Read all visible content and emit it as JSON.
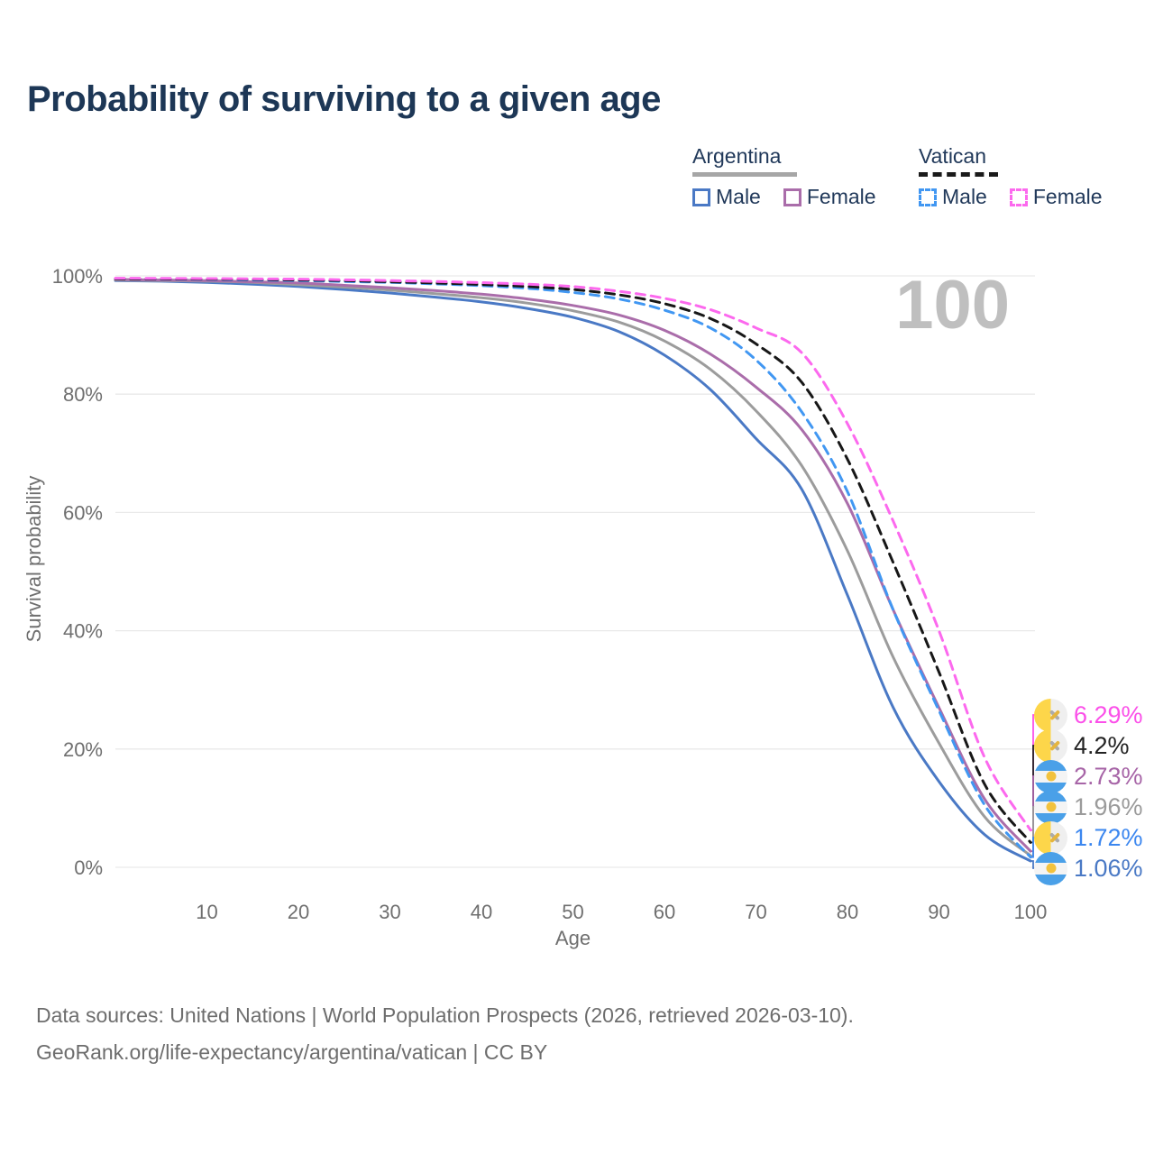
{
  "title": "Probability of surviving to a given age",
  "watermark": "100",
  "legend": {
    "groups": [
      {
        "name": "Argentina",
        "underline": "solid",
        "underline_color": "#a6a6a6",
        "items": [
          {
            "label": "Male",
            "color": "#4a79c5",
            "dashed": false
          },
          {
            "label": "Female",
            "color": "#aa6daa",
            "dashed": false
          }
        ]
      },
      {
        "name": "Vatican",
        "underline": "dashed",
        "underline_color": "#1a1a1a",
        "items": [
          {
            "label": "Male",
            "color": "#4197f2",
            "dashed": true
          },
          {
            "label": "Female",
            "color": "#fc69ee",
            "dashed": true
          }
        ]
      }
    ]
  },
  "chart_data": {
    "type": "line",
    "title": "Probability of surviving to a given age",
    "xlabel": "Age",
    "ylabel": "Survival probability",
    "xlim": [
      0,
      100
    ],
    "ylim": [
      0,
      100
    ],
    "grid": "horizontal",
    "x_ticks": [
      10,
      20,
      30,
      40,
      50,
      60,
      70,
      80,
      90,
      100
    ],
    "y_ticks": [
      0,
      20,
      40,
      60,
      80,
      100
    ],
    "y_tick_suffix": "%",
    "x": [
      0,
      5,
      10,
      15,
      20,
      25,
      30,
      35,
      40,
      45,
      50,
      55,
      60,
      65,
      70,
      75,
      80,
      85,
      90,
      95,
      100
    ],
    "series": [
      {
        "name": "Argentina Male",
        "slug": "argentina-male",
        "color": "#4a79c5",
        "dashed": false,
        "values": [
          99.2,
          99.1,
          98.9,
          98.6,
          98.2,
          97.7,
          97.1,
          96.4,
          95.6,
          94.5,
          93.0,
          90.6,
          86.6,
          80.8,
          72.5,
          63.9,
          46.0,
          27.0,
          14.5,
          5.5,
          1.06
        ]
      },
      {
        "name": "Argentina",
        "slug": "argentina-total",
        "color": "#9c9c9c",
        "dashed": false,
        "values": [
          99.3,
          99.2,
          99.1,
          98.9,
          98.5,
          98.1,
          97.6,
          97.0,
          96.3,
          95.4,
          94.1,
          92.2,
          89.0,
          84.2,
          77.2,
          67.9,
          53.5,
          35.5,
          21.0,
          8.5,
          1.96
        ]
      },
      {
        "name": "Argentina Female",
        "slug": "argentina-female",
        "color": "#aa6daa",
        "dashed": false,
        "values": [
          99.4,
          99.3,
          99.2,
          99.0,
          98.8,
          98.4,
          98.0,
          97.5,
          96.9,
          96.1,
          95.0,
          93.4,
          90.8,
          86.8,
          81.2,
          74.0,
          61.5,
          43.5,
          27.0,
          11.5,
          2.73
        ]
      },
      {
        "name": "Vatican Male",
        "slug": "vatican-male",
        "color": "#4197f2",
        "dashed": true,
        "values": [
          99.5,
          99.45,
          99.4,
          99.3,
          99.2,
          99.05,
          98.9,
          98.65,
          98.35,
          97.9,
          97.2,
          96.1,
          94.2,
          91.2,
          85.8,
          77.0,
          63.5,
          43.5,
          26.5,
          10.5,
          1.72
        ]
      },
      {
        "name": "Vatican",
        "slug": "vatican-total",
        "color": "#171717",
        "dashed": true,
        "values": [
          99.5,
          99.48,
          99.45,
          99.4,
          99.3,
          99.2,
          99.0,
          98.8,
          98.55,
          98.2,
          97.7,
          96.8,
          95.3,
          92.8,
          88.5,
          82.0,
          69.0,
          51.5,
          33.0,
          14.0,
          4.2
        ]
      },
      {
        "name": "Vatican Female",
        "slug": "vatican-female",
        "color": "#fc69ee",
        "dashed": true,
        "values": [
          99.6,
          99.58,
          99.55,
          99.5,
          99.45,
          99.35,
          99.2,
          99.05,
          98.85,
          98.6,
          98.2,
          97.4,
          96.2,
          94.3,
          91.2,
          87.0,
          75.0,
          58.5,
          40.0,
          18.5,
          6.29
        ]
      }
    ],
    "end_labels": [
      {
        "series": "Vatican Female",
        "slug": "vatican-female",
        "value": "6.29%",
        "color": "#fb50e9",
        "flag": "vatican"
      },
      {
        "series": "Vatican",
        "slug": "vatican-total",
        "value": "4.2%",
        "color": "#222222",
        "flag": "vatican"
      },
      {
        "series": "Argentina Female",
        "slug": "argentina-female",
        "value": "2.73%",
        "color": "#a765a7",
        "flag": "argentina"
      },
      {
        "series": "Argentina",
        "slug": "argentina-total",
        "value": "1.96%",
        "color": "#9b9b9b",
        "flag": "argentina"
      },
      {
        "series": "Vatican Male",
        "slug": "vatican-male",
        "value": "1.72%",
        "color": "#3c87ef",
        "flag": "vatican"
      },
      {
        "series": "Argentina Male",
        "slug": "argentina-male",
        "value": "1.06%",
        "color": "#4a79c5",
        "flag": "argentina"
      }
    ]
  },
  "footer": {
    "line1": "Data sources: United Nations | World Population Prospects (2026, retrieved 2026-03-10).",
    "line2": "GeoRank.org/life-expectancy/argentina/vatican | CC BY"
  }
}
